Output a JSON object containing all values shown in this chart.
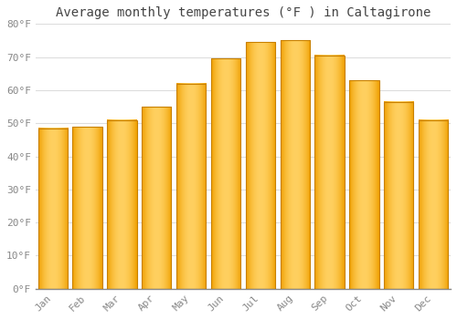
{
  "title": "Average monthly temperatures (°F ) in Caltagirone",
  "months": [
    "Jan",
    "Feb",
    "Mar",
    "Apr",
    "May",
    "Jun",
    "Jul",
    "Aug",
    "Sep",
    "Oct",
    "Nov",
    "Dec"
  ],
  "values": [
    48.5,
    49.0,
    51.0,
    55.0,
    62.0,
    69.5,
    74.5,
    75.0,
    70.5,
    63.0,
    56.5,
    51.0
  ],
  "bar_color_center": "#FFD060",
  "bar_color_edge": "#F0A000",
  "ylim": [
    0,
    80
  ],
  "yticks": [
    0,
    10,
    20,
    30,
    40,
    50,
    60,
    70,
    80
  ],
  "ytick_labels": [
    "0°F",
    "10°F",
    "20°F",
    "30°F",
    "40°F",
    "50°F",
    "60°F",
    "70°F",
    "80°F"
  ],
  "background_color": "#FFFFFF",
  "grid_color": "#DDDDDD",
  "title_fontsize": 10,
  "tick_fontsize": 8,
  "bar_outline_color": "#C88000",
  "bar_width": 0.85
}
